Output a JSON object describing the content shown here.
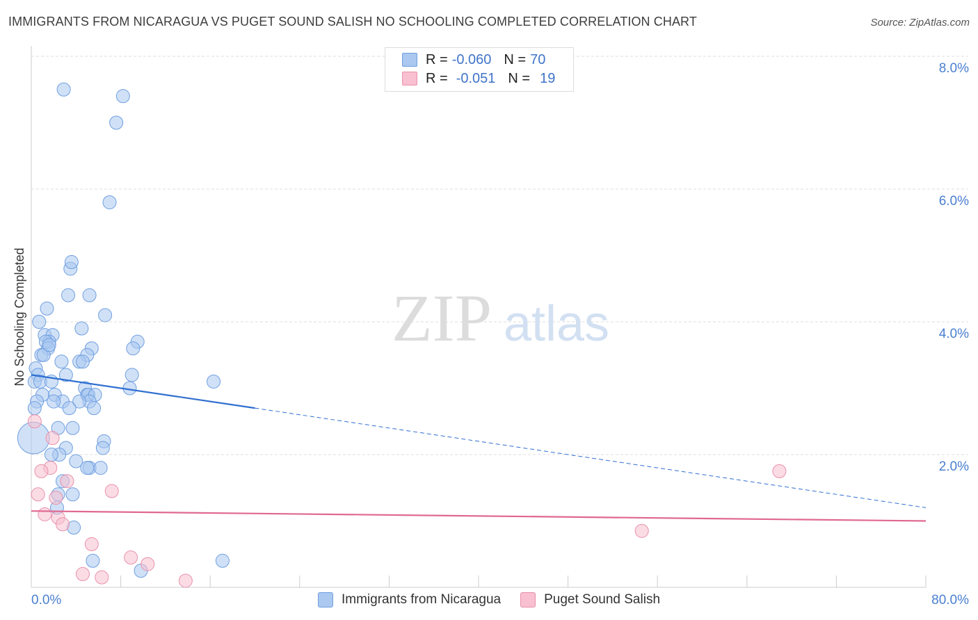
{
  "title": "IMMIGRANTS FROM NICARAGUA VS PUGET SOUND SALISH NO SCHOOLING COMPLETED CORRELATION CHART",
  "source": "Source: ZipAtlas.com",
  "watermark": {
    "zip": "ZIP",
    "atlas": "atlas"
  },
  "stats": [
    {
      "r_label": "R =",
      "r_value": "-0.060",
      "n_label": "N =",
      "n_value": "70",
      "color": "#aac8f0",
      "border": "#6f9ee0"
    },
    {
      "r_label": "R =",
      "r_value": "-0.051",
      "n_label": "N =",
      "n_value": "19",
      "color": "#f8c0d0",
      "border": "#e890aa"
    }
  ],
  "legend": [
    {
      "label": "Immigrants from Nicaragua",
      "color": "#aac8f0",
      "border": "#6f9ee0"
    },
    {
      "label": "Puget Sound Salish",
      "color": "#f8c0d0",
      "border": "#e890aa"
    }
  ],
  "chart_data": {
    "type": "scatter",
    "xlabel": "",
    "ylabel": "No Schooling Completed",
    "xlim": [
      0,
      80
    ],
    "ylim": [
      0,
      8.4
    ],
    "x_tick_labels": [
      "0.0%",
      "80.0%"
    ],
    "y_ticks": [
      2,
      4,
      6,
      8
    ],
    "y_tick_labels": [
      "2.0%",
      "4.0%",
      "6.0%",
      "8.0%"
    ],
    "grid": true,
    "series": [
      {
        "name": "Immigrants from Nicaragua",
        "color": "#6f9ee0",
        "fill": "#aac8f0",
        "trend": {
          "x0": 0,
          "y0": 3.2,
          "x1": 20,
          "y1": 2.7,
          "x_dashed_end": 80,
          "y_dashed_end": 1.2,
          "color": "#2f6fd0"
        },
        "points": [
          [
            2.9,
            7.5
          ],
          [
            8.2,
            7.4
          ],
          [
            7.6,
            7.0
          ],
          [
            7.0,
            5.8
          ],
          [
            3.5,
            4.8
          ],
          [
            3.6,
            4.9
          ],
          [
            5.2,
            4.4
          ],
          [
            3.3,
            4.4
          ],
          [
            1.4,
            4.2
          ],
          [
            6.6,
            4.1
          ],
          [
            0.7,
            4.0
          ],
          [
            4.5,
            3.9
          ],
          [
            1.2,
            3.8
          ],
          [
            1.9,
            3.8
          ],
          [
            1.6,
            3.7
          ],
          [
            1.3,
            3.7
          ],
          [
            1.5,
            3.6
          ],
          [
            9.5,
            3.7
          ],
          [
            9.1,
            3.6
          ],
          [
            5.4,
            3.6
          ],
          [
            5.0,
            3.5
          ],
          [
            0.9,
            3.5
          ],
          [
            1.1,
            3.5
          ],
          [
            4.3,
            3.4
          ],
          [
            2.7,
            3.4
          ],
          [
            4.6,
            3.4
          ],
          [
            0.4,
            3.3
          ],
          [
            0.6,
            3.2
          ],
          [
            3.1,
            3.2
          ],
          [
            9.0,
            3.2
          ],
          [
            16.3,
            3.1
          ],
          [
            0.3,
            3.1
          ],
          [
            0.8,
            3.1
          ],
          [
            1.8,
            3.1
          ],
          [
            8.8,
            3.0
          ],
          [
            4.8,
            3.0
          ],
          [
            2.1,
            2.9
          ],
          [
            5.0,
            2.9
          ],
          [
            5.1,
            2.9
          ],
          [
            5.7,
            2.9
          ],
          [
            1.0,
            2.9
          ],
          [
            5.2,
            2.8
          ],
          [
            2.8,
            2.8
          ],
          [
            0.5,
            2.8
          ],
          [
            2.0,
            2.8
          ],
          [
            4.3,
            2.8
          ],
          [
            5.6,
            2.7
          ],
          [
            0.3,
            2.7
          ],
          [
            3.4,
            2.7
          ],
          [
            2.4,
            2.4
          ],
          [
            3.7,
            2.4
          ],
          [
            0.2,
            2.25
          ],
          [
            6.5,
            2.2
          ],
          [
            6.4,
            2.1
          ],
          [
            3.1,
            2.1
          ],
          [
            2.5,
            2.0
          ],
          [
            1.8,
            2.0
          ],
          [
            4.0,
            1.9
          ],
          [
            5.2,
            1.8
          ],
          [
            6.2,
            1.8
          ],
          [
            5.0,
            1.8
          ],
          [
            2.8,
            1.6
          ],
          [
            3.7,
            1.4
          ],
          [
            2.4,
            1.4
          ],
          [
            2.3,
            1.2
          ],
          [
            3.8,
            0.9
          ],
          [
            5.5,
            0.4
          ],
          [
            17.1,
            0.4
          ],
          [
            9.8,
            0.25
          ],
          [
            1.6,
            3.65
          ]
        ],
        "point_sizes": [
          1,
          1,
          1,
          1,
          1,
          1,
          1,
          1,
          1,
          1,
          1,
          1,
          1,
          1,
          1,
          1,
          1,
          1,
          1,
          1,
          1,
          1,
          1,
          1,
          1,
          1,
          1,
          1,
          1,
          1,
          1,
          1,
          1,
          1,
          1,
          1,
          1,
          1,
          1,
          1,
          1,
          1,
          1,
          1,
          1,
          1,
          1,
          1,
          1,
          1,
          1,
          2.4,
          1,
          1,
          1,
          1,
          1,
          1,
          1,
          1,
          1,
          1,
          1,
          1,
          1,
          1,
          1,
          1,
          1,
          1
        ]
      },
      {
        "name": "Puget Sound Salish",
        "color": "#e890aa",
        "fill": "#f8c0d0",
        "trend": {
          "x0": 0,
          "y0": 1.15,
          "x1": 80,
          "y1": 1.0,
          "color": "#e06890"
        },
        "points": [
          [
            0.3,
            2.5
          ],
          [
            1.9,
            2.25
          ],
          [
            1.7,
            1.8
          ],
          [
            0.9,
            1.75
          ],
          [
            3.2,
            1.6
          ],
          [
            7.2,
            1.45
          ],
          [
            0.6,
            1.4
          ],
          [
            2.2,
            1.35
          ],
          [
            1.2,
            1.1
          ],
          [
            2.4,
            1.05
          ],
          [
            2.8,
            0.95
          ],
          [
            5.4,
            0.65
          ],
          [
            8.9,
            0.45
          ],
          [
            10.4,
            0.35
          ],
          [
            4.6,
            0.2
          ],
          [
            6.3,
            0.15
          ],
          [
            13.8,
            0.1
          ],
          [
            66.9,
            1.75
          ],
          [
            54.6,
            0.85
          ]
        ]
      }
    ]
  }
}
